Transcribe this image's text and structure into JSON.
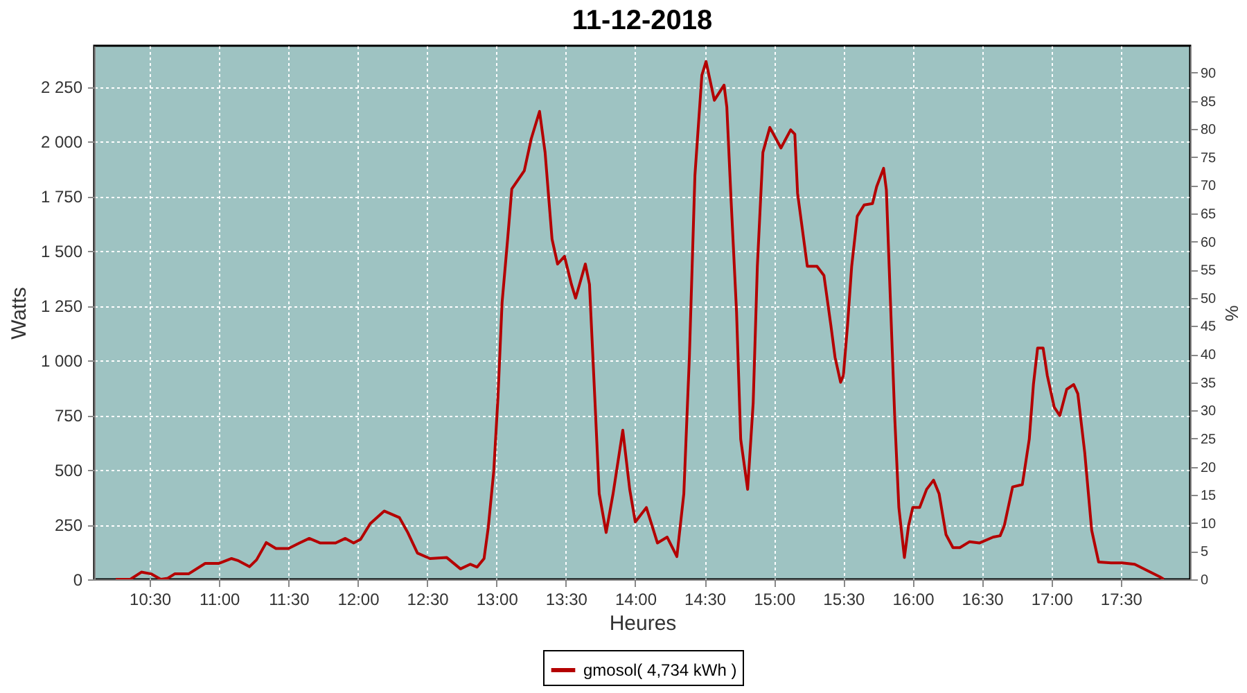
{
  "chart_data": {
    "type": "line",
    "title": "11-12-2018",
    "xlabel": "Heures",
    "ylabel": "Watts",
    "y2label": "%",
    "x": [
      10.255,
      10.36,
      10.44,
      10.51,
      10.58,
      10.63,
      10.68,
      10.78,
      10.9,
      11.0,
      11.09,
      11.14,
      11.22,
      11.27,
      11.34,
      11.41,
      11.5,
      11.58,
      11.65,
      11.73,
      11.84,
      11.91,
      11.97,
      12.02,
      12.09,
      12.19,
      12.3,
      12.36,
      12.43,
      12.52,
      12.64,
      12.74,
      12.81,
      12.86,
      12.91,
      12.94,
      12.98,
      13.01,
      13.04,
      13.08,
      13.11,
      13.2,
      13.25,
      13.31,
      13.35,
      13.4,
      13.44,
      13.49,
      13.54,
      13.57,
      13.64,
      13.67,
      13.71,
      13.74,
      13.79,
      13.84,
      13.91,
      13.96,
      14.0,
      14.08,
      14.16,
      14.23,
      14.3,
      14.35,
      14.39,
      14.43,
      14.48,
      14.51,
      14.57,
      14.64,
      14.66,
      14.69,
      14.73,
      14.76,
      14.81,
      14.85,
      14.88,
      14.92,
      14.97,
      15.05,
      15.12,
      15.15,
      15.17,
      15.24,
      15.31,
      15.36,
      15.41,
      15.44,
      15.48,
      15.5,
      15.53,
      15.56,
      15.6,
      15.65,
      15.71,
      15.74,
      15.79,
      15.81,
      15.83,
      15.87,
      15.9,
      15.94,
      15.97,
      16.0,
      16.05,
      16.1,
      16.15,
      16.19,
      16.24,
      16.29,
      16.34,
      16.41,
      16.48,
      16.58,
      16.63,
      16.66,
      16.72,
      16.79,
      16.8,
      16.84,
      16.87,
      16.9,
      16.94,
      16.97,
      17.02,
      17.06,
      17.11,
      17.16,
      17.19,
      17.24,
      17.29,
      17.34,
      17.43,
      17.51,
      17.6,
      17.7,
      17.78,
      17.81
    ],
    "series": [
      {
        "name": "gmosol( 4,734 kWh )",
        "color": "#b40000",
        "values": [
          0,
          0,
          33,
          25,
          0,
          5,
          25,
          25,
          73,
          73,
          95,
          85,
          58,
          89,
          168,
          141,
          141,
          166,
          187,
          166,
          166,
          187,
          166,
          183,
          255,
          312,
          282,
          214,
          120,
          95,
          100,
          48,
          69,
          56,
          95,
          235,
          494,
          827,
          1264,
          1554,
          1783,
          1866,
          2012,
          2137,
          1950,
          1554,
          1440,
          1475,
          1347,
          1284,
          1440,
          1347,
          806,
          391,
          214,
          391,
          681,
          411,
          262,
          328,
          166,
          193,
          104,
          391,
          1014,
          1845,
          2302,
          2365,
          2188,
          2257,
          2157,
          1741,
          1222,
          640,
          411,
          806,
          1430,
          1950,
          2064,
          1970,
          2053,
          2033,
          1763,
          1430,
          1430,
          1388,
          1160,
          1014,
          900,
          931,
          1160,
          1430,
          1658,
          1710,
          1716,
          1794,
          1877,
          1779,
          1430,
          744,
          328,
          100,
          245,
          328,
          328,
          411,
          453,
          391,
          204,
          145,
          145,
          172,
          166,
          193,
          199,
          245,
          422,
          433,
          474,
          640,
          890,
          1056,
          1056,
          931,
          786,
          748,
          868,
          890,
          848,
          578,
          224,
          79,
          75,
          75,
          69,
          37,
          12,
          0
        ]
      }
    ],
    "xlim": [
      10.1,
      18.0
    ],
    "xticks": [
      {
        "value": 10.5,
        "label": "10:30"
      },
      {
        "value": 11,
        "label": "11:00"
      },
      {
        "value": 11.5,
        "label": "11:30"
      },
      {
        "value": 12,
        "label": "12:00"
      },
      {
        "value": 12.5,
        "label": "12:30"
      },
      {
        "value": 13,
        "label": "13:00"
      },
      {
        "value": 13.5,
        "label": "13:30"
      },
      {
        "value": 14,
        "label": "14:00"
      },
      {
        "value": 14.5,
        "label": "14:30"
      },
      {
        "value": 15,
        "label": "15:00"
      },
      {
        "value": 15.5,
        "label": "15:30"
      },
      {
        "value": 16,
        "label": "16:00"
      },
      {
        "value": 16.5,
        "label": "16:30"
      },
      {
        "value": 17,
        "label": "17:00"
      },
      {
        "value": 17.5,
        "label": "17:30"
      }
    ],
    "ylim": [
      0,
      2437
    ],
    "yticks": [
      0,
      250,
      500,
      750,
      {
        "value": 1000,
        "label": "1 000"
      },
      {
        "value": 1250,
        "label": "1 250"
      },
      {
        "value": 1500,
        "label": "1 500"
      },
      {
        "value": 1750,
        "label": "1 750"
      },
      {
        "value": 2000,
        "label": "2 000"
      },
      {
        "value": 2250,
        "label": "2 250"
      }
    ],
    "y2lim": [
      0,
      94.8
    ],
    "y2ticks": [
      0,
      5,
      10,
      15,
      20,
      25,
      30,
      35,
      40,
      45,
      50,
      55,
      60,
      65,
      70,
      75,
      80,
      85,
      90
    ],
    "grid": true,
    "legend": "bottom"
  }
}
